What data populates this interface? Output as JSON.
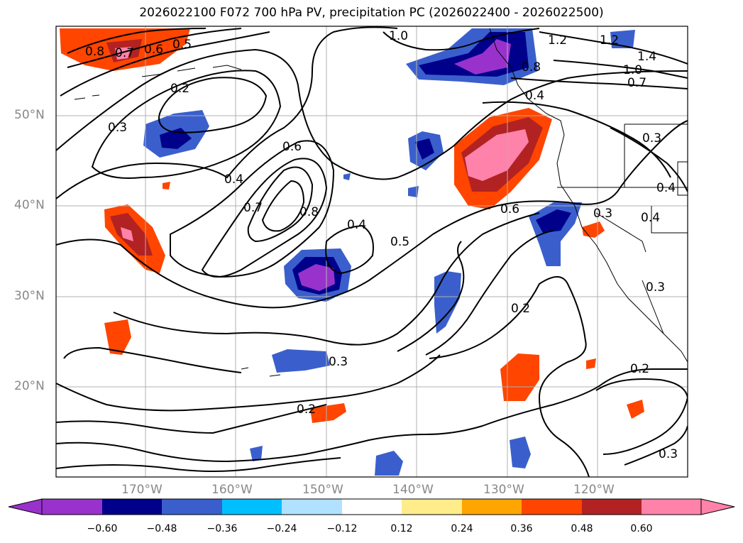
{
  "title": "2026022100 F072 700 hPa PV, precipitation PC (2026022400 - 2026022500)",
  "latitude_labels": [
    "50°N",
    "40°N",
    "30°N",
    "20°N"
  ],
  "longitude_labels": [
    "170°W",
    "160°W",
    "150°W",
    "140°W",
    "130°W",
    "120°W"
  ],
  "colorbar": {
    "ticks": [
      "−0.60",
      "−0.48",
      "−0.36",
      "−0.24",
      "−0.12",
      "0.12",
      "0.24",
      "0.36",
      "0.48",
      "0.60"
    ],
    "colors": [
      "#9932cc",
      "#00008b",
      "#3a5fcd",
      "#00bfff",
      "#b0e2ff",
      "#ffffff",
      "#ffec8b",
      "#ffa500",
      "#ff4500",
      "#b22222",
      "#ff82ab"
    ]
  },
  "contour_labels": [
    "0.8",
    "0.7",
    "0.6",
    "0.5",
    "0.2",
    "0.3",
    "1.0",
    "1.2",
    "1.2",
    "1.4",
    "1.0",
    "0.7",
    "0.8",
    "0.4",
    "0.6",
    "0.4",
    "0.7",
    "0.8",
    "0.4",
    "0.5",
    "0.6",
    "0.3",
    "0.3",
    "0.4",
    "0.4",
    "0.3",
    "0.2",
    "0.2",
    "0.3",
    "0.2",
    "0.3"
  ]
}
